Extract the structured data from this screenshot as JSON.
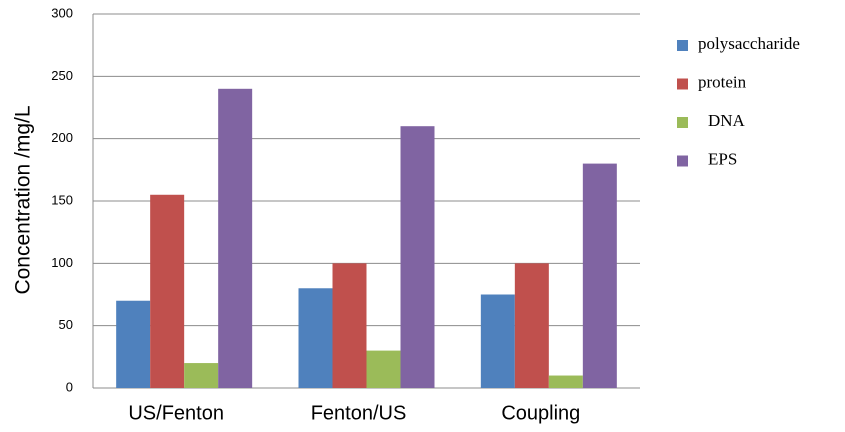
{
  "chart_data": {
    "type": "bar",
    "y_label": "Concentration /mg/L",
    "categories": [
      "US/Fenton",
      "Fenton/US",
      "Coupling"
    ],
    "series": [
      {
        "name": "polysaccharide",
        "color": "#4f81bd",
        "values": [
          70,
          80,
          75
        ]
      },
      {
        "name": "protein",
        "color": "#c0504d",
        "values": [
          155,
          100,
          100
        ]
      },
      {
        "name": "DNA",
        "color": "#9bbb59",
        "values": [
          20,
          30,
          10
        ]
      },
      {
        "name": "EPS",
        "color": "#8064a2",
        "values": [
          240,
          210,
          180
        ]
      }
    ],
    "ylim": [
      0,
      300
    ],
    "yticks": [
      0,
      50,
      100,
      150,
      200,
      250,
      300
    ],
    "grid": true,
    "legend": "right"
  }
}
